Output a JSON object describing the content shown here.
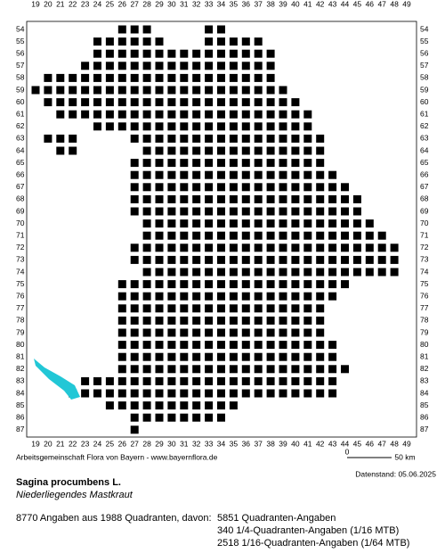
{
  "map": {
    "columns": [
      19,
      20,
      21,
      22,
      23,
      24,
      25,
      26,
      27,
      28,
      29,
      30,
      31,
      32,
      33,
      34,
      35,
      36,
      37,
      38,
      39,
      40,
      41,
      42,
      43,
      44,
      45,
      46,
      47,
      48,
      49
    ],
    "rows": [
      54,
      55,
      56,
      57,
      58,
      59,
      60,
      61,
      62,
      63,
      64,
      65,
      66,
      67,
      68,
      69,
      70,
      71,
      72,
      73,
      74,
      75,
      76,
      77,
      78,
      79,
      80,
      81,
      82,
      83,
      84,
      85,
      86,
      87
    ],
    "occupied": [
      {
        "row": 54,
        "cols": [
          [
            26,
            28
          ],
          [
            33,
            34
          ]
        ]
      },
      {
        "row": 55,
        "cols": [
          [
            24,
            29
          ],
          [
            33,
            37
          ]
        ]
      },
      {
        "row": 56,
        "cols": [
          [
            24,
            38
          ]
        ]
      },
      {
        "row": 57,
        "cols": [
          [
            23,
            38
          ]
        ]
      },
      {
        "row": 58,
        "cols": [
          [
            20,
            38
          ]
        ]
      },
      {
        "row": 59,
        "cols": [
          [
            19,
            39
          ]
        ]
      },
      {
        "row": 60,
        "cols": [
          [
            20,
            40
          ]
        ]
      },
      {
        "row": 61,
        "cols": [
          [
            21,
            41
          ]
        ]
      },
      {
        "row": 62,
        "cols": [
          [
            24,
            41
          ]
        ]
      },
      {
        "row": 63,
        "cols": [
          [
            20,
            22
          ],
          [
            27,
            42
          ]
        ]
      },
      {
        "row": 64,
        "cols": [
          [
            21,
            22
          ],
          [
            28,
            42
          ]
        ]
      },
      {
        "row": 65,
        "cols": [
          [
            27,
            42
          ]
        ]
      },
      {
        "row": 66,
        "cols": [
          [
            27,
            43
          ]
        ]
      },
      {
        "row": 67,
        "cols": [
          [
            27,
            44
          ]
        ]
      },
      {
        "row": 68,
        "cols": [
          [
            27,
            45
          ]
        ]
      },
      {
        "row": 69,
        "cols": [
          [
            27,
            45
          ]
        ]
      },
      {
        "row": 70,
        "cols": [
          [
            28,
            46
          ]
        ]
      },
      {
        "row": 71,
        "cols": [
          [
            28,
            47
          ]
        ]
      },
      {
        "row": 72,
        "cols": [
          [
            27,
            48
          ]
        ]
      },
      {
        "row": 73,
        "cols": [
          [
            27,
            48
          ]
        ]
      },
      {
        "row": 74,
        "cols": [
          [
            28,
            48
          ]
        ]
      },
      {
        "row": 75,
        "cols": [
          [
            26,
            44
          ]
        ]
      },
      {
        "row": 76,
        "cols": [
          [
            26,
            43
          ]
        ]
      },
      {
        "row": 77,
        "cols": [
          [
            26,
            42
          ]
        ]
      },
      {
        "row": 78,
        "cols": [
          [
            26,
            42
          ]
        ]
      },
      {
        "row": 79,
        "cols": [
          [
            26,
            42
          ]
        ]
      },
      {
        "row": 80,
        "cols": [
          [
            26,
            43
          ]
        ]
      },
      {
        "row": 81,
        "cols": [
          [
            26,
            43
          ]
        ]
      },
      {
        "row": 82,
        "cols": [
          [
            26,
            44
          ]
        ]
      },
      {
        "row": 83,
        "cols": [
          [
            23,
            43
          ]
        ]
      },
      {
        "row": 84,
        "cols": [
          [
            22,
            43
          ]
        ]
      },
      {
        "row": 85,
        "cols": [
          [
            25,
            35
          ]
        ]
      },
      {
        "row": 86,
        "cols": [
          [
            27,
            34
          ]
        ]
      },
      {
        "row": 87,
        "cols": [
          [
            27,
            27
          ]
        ]
      }
    ]
  },
  "footer": {
    "credit": "Arbeitsgemeinschaft Flora von Bayern - www.bayernflora.de",
    "scale_start": "0",
    "scale_end": "50 km",
    "date": "Datenstand: 05.06.2025"
  },
  "species": {
    "name": "Sagina procumbens L.",
    "german_name": "Niederliegendes Mastkraut"
  },
  "stats": {
    "summary": "8770 Angaben aus 1988 Quadranten, davon:",
    "lines": [
      "5851 Quadranten-Angaben",
      "340 1/4-Quadranten-Angaben (1/16 MTB)",
      "2518 1/16-Quadranten-Angaben (1/64 MTB)"
    ]
  }
}
